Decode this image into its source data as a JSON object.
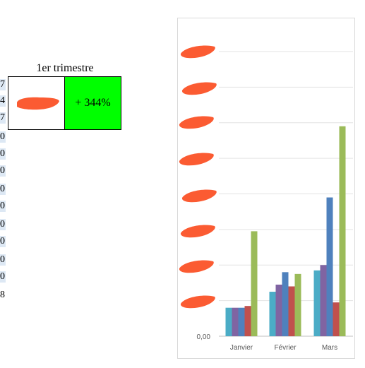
{
  "table": {
    "header": "1er trimestre",
    "value": "+ 344%",
    "value_bg": "#00ff00"
  },
  "left_column": {
    "glyphs": [
      "7",
      "4",
      "7",
      "0",
      "0",
      "0",
      "0",
      "0",
      "0",
      "0",
      "0",
      "0",
      "8"
    ]
  },
  "chart_data": {
    "type": "bar",
    "categories": [
      "Janvier",
      "Février",
      "Mars"
    ],
    "y_tick_label_visible": "0,00",
    "series": [
      {
        "color": "#4bacc6",
        "values": [
          0.8,
          1.25,
          1.85
        ]
      },
      {
        "color": "#8064a2",
        "values": [
          0.8,
          1.45,
          2.0
        ]
      },
      {
        "color": "#4f81bd",
        "values": [
          0.8,
          1.8,
          3.9
        ]
      },
      {
        "color": "#c0504d",
        "values": [
          0.85,
          1.4,
          0.95
        ]
      },
      {
        "color": "#9bbb59",
        "values": [
          2.95,
          1.75,
          5.9
        ]
      }
    ],
    "ylim": [
      0,
      8
    ],
    "gridlines": true,
    "redacted_tick_labels": true,
    "redaction_color": "#fb5b32"
  }
}
